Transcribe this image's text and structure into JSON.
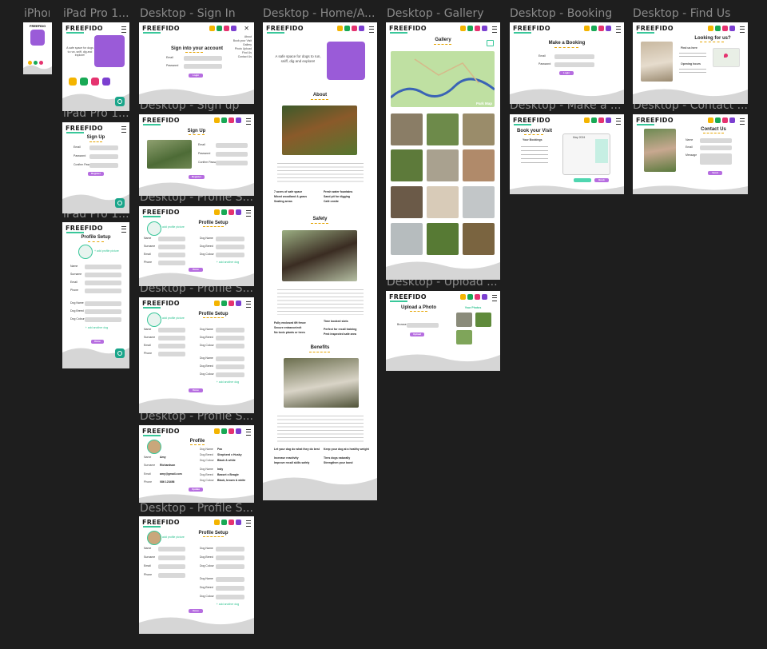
{
  "frames": {
    "f_iphone": "iPhone",
    "f_ipad1": "iPad Pro 1...",
    "f_ipad2": "iPad Pro 1...",
    "f_ipad3": "iPad Pro 1...",
    "f_signin": "Desktop - Sign In",
    "f_signup": "Desktop - Sign up",
    "f_prof1": "Desktop - Profile S...",
    "f_prof2": "Desktop - Profile S...",
    "f_prof3": "Desktop - Profile S...",
    "f_prof4": "Desktop - Profile S...",
    "f_home": "Desktop - Home/A...",
    "f_gallery": "Desktop - Gallery",
    "f_upload": "Desktop - Upload ...",
    "f_booking": "Desktop - Booking",
    "f_make": "Desktop - Make a ...",
    "f_find": "Desktop - Find Us",
    "f_contact": "Desktop - Contact ..."
  },
  "brand": {
    "logo": "FREEFIDO"
  },
  "colors": {
    "purple": "#9a5bd8",
    "teal": "#39c79a",
    "gold": "#e5a400",
    "button": "#b66de0"
  },
  "signin": {
    "title": "Sign into your account",
    "email": "Email",
    "password": "Password",
    "button": "Login",
    "menu": [
      "About",
      "Book your Visit",
      "Gallery",
      "Photo Upload",
      "Find Us",
      "Contact Us"
    ]
  },
  "signup": {
    "title": "Sign Up",
    "email": "Email",
    "password": "Password",
    "confirm": "Confirm Password",
    "button": "Register"
  },
  "profile": {
    "title": "Profile Setup",
    "add_pic": "+ add profile picture",
    "add_dog": "+ add another dog",
    "fields": [
      "Name",
      "Surname",
      "Email",
      "Phone"
    ],
    "dog_fields": [
      "Dog Name",
      "Dog Breed",
      "Dog Colour"
    ],
    "button": "Done",
    "update": "Update"
  },
  "profile_view": {
    "title": "Profile",
    "name": "Amy",
    "surname": "Richardson",
    "email": "amy@gmail.com",
    "phone": "086 123456",
    "dog1": "Pax",
    "breed1": "Shepherd x Husky",
    "colour1": "Black & white",
    "dog2": "Indy",
    "breed2": "Basset x Beagle",
    "colour2": "Black, brown & white"
  },
  "home": {
    "tagline": "A safe space for dogs to run, sniff, dig and explore!",
    "about": "About",
    "safety": "Safety",
    "benefits": "Benefits",
    "about_list": [
      "7 acres of safe space",
      "Mixed woodland & grass",
      "Seating areas",
      "Fresh water fountains",
      "Sand pit for digging",
      "Café onsite"
    ],
    "safety_list": [
      "Fully enclosed 6ft fence",
      "Secure entrance/exit",
      "No toxic plants or trees",
      "Time booked slots",
      "Perfect for recall training",
      "Pest inspected safe area"
    ],
    "benefit_list": [
      "Let your dog do what they do best",
      "Increase reactivity",
      "Improve recall skills safely",
      "Keep your dog at a healthy weight",
      "Tires dogs naturally",
      "Strengthen your bond"
    ]
  },
  "gallery": {
    "title": "Gallery",
    "map_label": "Park Map"
  },
  "upload": {
    "title": "Upload a Photo",
    "your_photos": "Your Photos",
    "browse": "Browse",
    "button": "Upload"
  },
  "booking": {
    "title": "Make a Booking",
    "email": "Email",
    "password": "Password",
    "button": "Login"
  },
  "book_visit": {
    "title": "Book your Visit",
    "your_bookings": "Your Bookings",
    "month": "May 2024",
    "book": "Book"
  },
  "find": {
    "title": "Looking for us?",
    "find_heading": "Find us here",
    "hours": "Opening hours"
  },
  "contact": {
    "title": "Contact Us",
    "name": "Name",
    "email": "Email",
    "message": "Message",
    "button": "Send"
  }
}
